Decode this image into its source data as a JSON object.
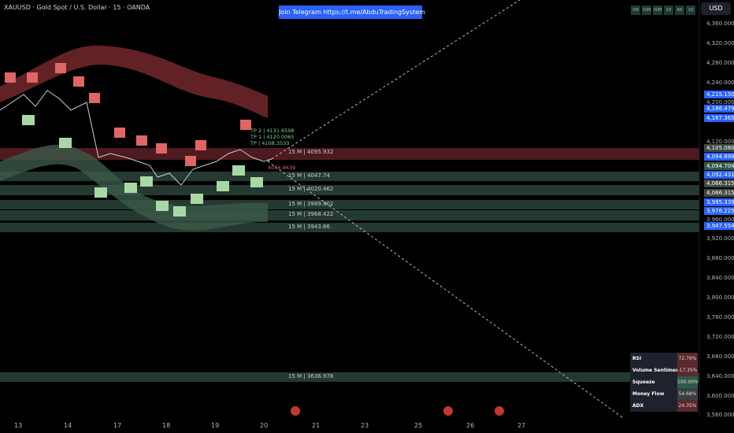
{
  "header": {
    "symbol": "XAUUSD · Gold Spot / U.S. Dollar · 15 · OANDA",
    "banner": "Join Telegram https://t.me/AbduTradingSystem",
    "currency": "USD"
  },
  "timeframes": [
    "5M",
    "15M",
    "30M",
    "1H",
    "4H",
    "1D"
  ],
  "price_ticks": [
    "4,360.000",
    "4,320.000",
    "4,280.000",
    "4,240.000",
    "4,200.000",
    "4,120.000",
    "3,960.000",
    "3,920.000",
    "3,880.000",
    "3,840.000",
    "3,800.000",
    "3,760.000",
    "3,720.000",
    "3,680.000",
    "3,640.000",
    "3,600.000",
    "3,560.000"
  ],
  "price_labels": [
    "4,215.150",
    "4,186.479",
    "4,167.365",
    "4,105.080",
    "4,094.899",
    "4,094.704",
    "4,092.431",
    "4,066.315",
    "4,066.315",
    "3,995.339",
    "3,976.225",
    "3,947.554"
  ],
  "dates": [
    "13",
    "14",
    "17",
    "18",
    "19",
    "20",
    "21",
    "23",
    "25",
    "26",
    "27"
  ],
  "levels": [
    "15 M | 4095.932",
    "15 M | 4047.74",
    "15 M | 4020.462",
    "15 M | 3989.802",
    "15 M | 3968.422",
    "15 M | 3943.66",
    "15 M | 3636.978"
  ],
  "targets": [
    "TP 2 | 4131.6598",
    "TP 1 | 4120.0065",
    "TP | 4108.3533",
    "4054.9639"
  ],
  "indicators": [
    {
      "name": "RSI",
      "value": "72.79%"
    },
    {
      "name": "Volume Sentiment",
      "value": "-17.35%"
    },
    {
      "name": "Squeeze",
      "value": "100.00%"
    },
    {
      "name": "Money Flow",
      "value": "54.68%"
    },
    {
      "name": "ADX",
      "value": "24.35%"
    }
  ]
}
